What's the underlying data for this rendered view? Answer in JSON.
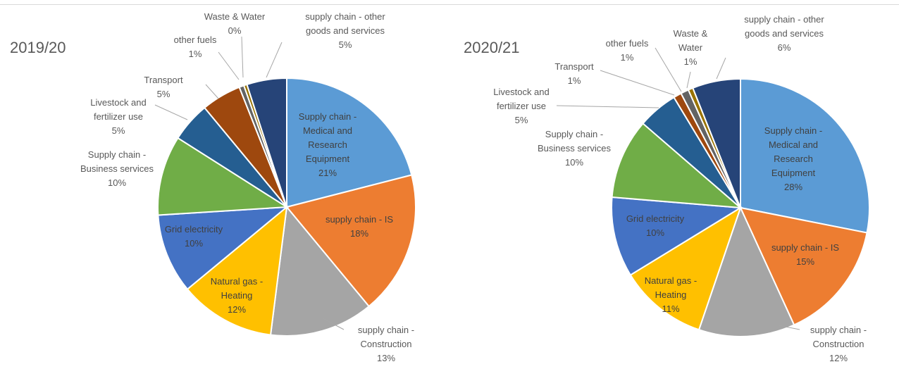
{
  "chart_data": [
    {
      "type": "pie",
      "title": "2019/20",
      "slices": [
        {
          "lines": [
            "Supply chain -",
            "Medical and",
            "Research",
            "Equipment",
            "21%"
          ],
          "value": 21,
          "color": "#5B9BD5",
          "label_pos": "inside"
        },
        {
          "lines": [
            "supply chain - IS",
            "18%"
          ],
          "value": 18,
          "color": "#ED7D31",
          "label_pos": "inside"
        },
        {
          "lines": [
            "supply chain -",
            "Construction",
            "13%"
          ],
          "value": 13,
          "color": "#A5A5A5",
          "label_pos": "outside"
        },
        {
          "lines": [
            "Natural gas -",
            "Heating",
            "12%"
          ],
          "value": 12,
          "color": "#FFC000",
          "label_pos": "inside"
        },
        {
          "lines": [
            "Grid electricity",
            "10%"
          ],
          "value": 10,
          "color": "#4472C4",
          "label_pos": "inside"
        },
        {
          "lines": [
            "Supply chain -",
            "Business services",
            "10%"
          ],
          "value": 10,
          "color": "#70AD47",
          "label_pos": "outside"
        },
        {
          "lines": [
            "Livestock and",
            "fertilizer use",
            "5%"
          ],
          "value": 5,
          "color": "#255E91",
          "label_pos": "outside"
        },
        {
          "lines": [
            "Transport",
            "5%"
          ],
          "value": 5,
          "color": "#9E480E",
          "label_pos": "outside"
        },
        {
          "lines": [
            "other fuels",
            "1%"
          ],
          "value": 0.6,
          "color": "#636363",
          "label_pos": "outside"
        },
        {
          "lines": [
            "Waste & Water",
            "0%"
          ],
          "value": 0.4,
          "color": "#997300",
          "label_pos": "outside"
        },
        {
          "lines": [
            "supply chain - other",
            "goods and services",
            "5%"
          ],
          "value": 5,
          "color": "#264478",
          "label_pos": "outside"
        }
      ]
    },
    {
      "type": "pie",
      "title": "2020/21",
      "slices": [
        {
          "lines": [
            "Supply chain -",
            "Medical and",
            "Research",
            "Equipment",
            "28%"
          ],
          "value": 28,
          "color": "#5B9BD5",
          "label_pos": "inside"
        },
        {
          "lines": [
            "supply chain - IS",
            "15%"
          ],
          "value": 15,
          "color": "#ED7D31",
          "label_pos": "inside"
        },
        {
          "lines": [
            "supply chain -",
            "Construction",
            "12%"
          ],
          "value": 12,
          "color": "#A5A5A5",
          "label_pos": "outside"
        },
        {
          "lines": [
            "Natural gas -",
            "Heating",
            "11%"
          ],
          "value": 11,
          "color": "#FFC000",
          "label_pos": "inside"
        },
        {
          "lines": [
            "Grid electricity",
            "10%"
          ],
          "value": 10,
          "color": "#4472C4",
          "label_pos": "inside"
        },
        {
          "lines": [
            "Supply chain -",
            "Business services",
            "10%"
          ],
          "value": 10,
          "color": "#70AD47",
          "label_pos": "outside"
        },
        {
          "lines": [
            "Livestock and",
            "fertilizer use",
            "5%"
          ],
          "value": 5,
          "color": "#255E91",
          "label_pos": "outside"
        },
        {
          "lines": [
            "Transport",
            "1%"
          ],
          "value": 1,
          "color": "#9E480E",
          "label_pos": "outside"
        },
        {
          "lines": [
            "other fuels",
            "1%"
          ],
          "value": 1,
          "color": "#636363",
          "label_pos": "outside"
        },
        {
          "lines": [
            "Waste &",
            "Water",
            "1%"
          ],
          "value": 0.6,
          "color": "#997300",
          "label_pos": "outside"
        },
        {
          "lines": [
            "supply chain - other",
            "goods and services",
            "6%"
          ],
          "value": 6,
          "color": "#264478",
          "label_pos": "outside"
        }
      ]
    }
  ]
}
